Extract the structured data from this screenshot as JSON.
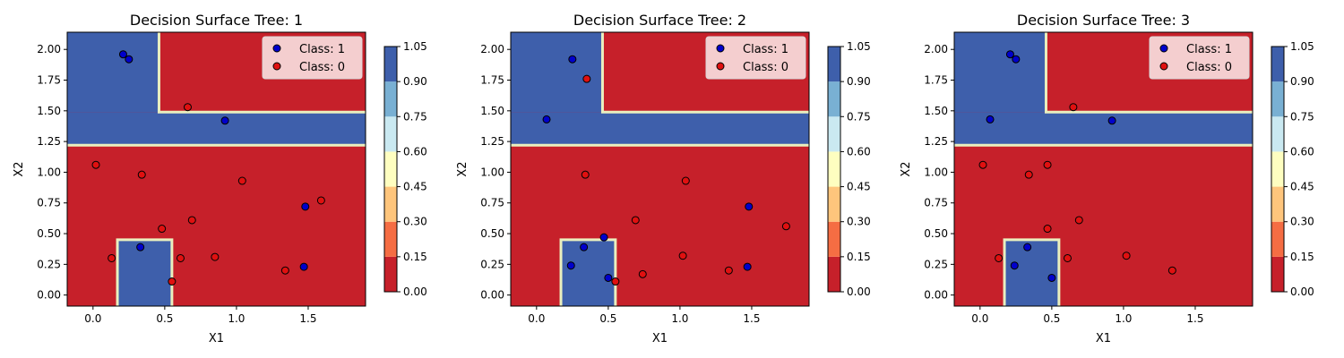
{
  "figure": {
    "colorbar_levels": [
      0.0,
      0.15,
      0.3,
      0.45,
      0.6,
      0.75,
      0.9,
      1.05
    ],
    "colorbar_labels": [
      "0.00",
      "0.15",
      "0.30",
      "0.45",
      "0.60",
      "0.75",
      "0.90",
      "1.05"
    ],
    "colorbar_colors": [
      "#c6202a",
      "#f56d43",
      "#fec57c",
      "#fefec0",
      "#cae9f1",
      "#79b0d3",
      "#3e5fab"
    ],
    "class_colors": {
      "1": "#0000cc",
      "0": "#e01010"
    },
    "boundary_color": "#e9efbf"
  },
  "chart_data": [
    {
      "type": "scatter",
      "title": "Decision Surface Tree: 1",
      "xlabel": "X1",
      "ylabel": "X2",
      "xlim": [
        -0.18,
        1.9
      ],
      "ylim": [
        -0.09,
        2.14
      ],
      "xticks": [
        0.0,
        0.5,
        1.0,
        1.5
      ],
      "xtick_labels": [
        "0.0",
        "0.5",
        "1.0",
        "1.5"
      ],
      "yticks": [
        0.0,
        0.25,
        0.5,
        0.75,
        1.0,
        1.25,
        1.5,
        1.75,
        2.0
      ],
      "ytick_labels": [
        "0.00",
        "0.25",
        "0.50",
        "0.75",
        "1.00",
        "1.25",
        "1.50",
        "1.75",
        "2.00"
      ],
      "legend": [
        "Class: 1",
        "Class: 0"
      ],
      "legend_position": "upper right",
      "surface_class1_regions": [
        {
          "x": [
            -0.18,
            1.9
          ],
          "y": [
            1.22,
            1.49
          ]
        },
        {
          "x": [
            -0.18,
            0.46
          ],
          "y": [
            1.49,
            2.14
          ]
        },
        {
          "x": [
            0.17,
            0.55
          ],
          "y": [
            -0.09,
            0.45
          ]
        }
      ],
      "series": [
        {
          "name": "Class: 1",
          "points": [
            [
              0.21,
              1.96
            ],
            [
              0.25,
              1.92
            ],
            [
              0.92,
              1.42
            ],
            [
              0.33,
              0.39
            ],
            [
              1.48,
              0.72
            ],
            [
              1.47,
              0.23
            ]
          ]
        },
        {
          "name": "Class: 0",
          "points": [
            [
              0.66,
              1.53
            ],
            [
              0.02,
              1.06
            ],
            [
              0.34,
              0.98
            ],
            [
              1.04,
              0.93
            ],
            [
              1.59,
              0.77
            ],
            [
              0.48,
              0.54
            ],
            [
              0.69,
              0.61
            ],
            [
              0.13,
              0.3
            ],
            [
              0.61,
              0.3
            ],
            [
              0.85,
              0.31
            ],
            [
              1.34,
              0.2
            ],
            [
              0.55,
              0.11
            ]
          ]
        }
      ]
    },
    {
      "type": "scatter",
      "title": "Decision Surface Tree: 2",
      "xlabel": "X1",
      "ylabel": "X2",
      "xlim": [
        -0.18,
        1.9
      ],
      "ylim": [
        -0.09,
        2.14
      ],
      "xticks": [
        0.0,
        0.5,
        1.0,
        1.5
      ],
      "xtick_labels": [
        "0.0",
        "0.5",
        "1.0",
        "1.5"
      ],
      "yticks": [
        0.0,
        0.25,
        0.5,
        0.75,
        1.0,
        1.25,
        1.5,
        1.75,
        2.0
      ],
      "ytick_labels": [
        "0.00",
        "0.25",
        "0.50",
        "0.75",
        "1.00",
        "1.25",
        "1.50",
        "1.75",
        "2.00"
      ],
      "legend": [
        "Class: 1",
        "Class: 0"
      ],
      "legend_position": "upper right",
      "surface_class1_regions": [
        {
          "x": [
            -0.18,
            1.9
          ],
          "y": [
            1.22,
            1.49
          ]
        },
        {
          "x": [
            -0.18,
            0.46
          ],
          "y": [
            1.49,
            2.14
          ]
        },
        {
          "x": [
            0.17,
            0.55
          ],
          "y": [
            -0.09,
            0.45
          ]
        }
      ],
      "series": [
        {
          "name": "Class: 1",
          "points": [
            [
              0.25,
              1.92
            ],
            [
              0.07,
              1.43
            ],
            [
              0.33,
              0.39
            ],
            [
              0.47,
              0.47
            ],
            [
              0.24,
              0.24
            ],
            [
              0.5,
              0.14
            ],
            [
              1.48,
              0.72
            ],
            [
              1.47,
              0.23
            ]
          ]
        },
        {
          "name": "Class: 0",
          "points": [
            [
              0.35,
              1.76
            ],
            [
              0.34,
              0.98
            ],
            [
              1.04,
              0.93
            ],
            [
              0.69,
              0.61
            ],
            [
              1.74,
              0.56
            ],
            [
              1.02,
              0.32
            ],
            [
              0.74,
              0.17
            ],
            [
              1.34,
              0.2
            ],
            [
              0.55,
              0.11
            ]
          ]
        }
      ]
    },
    {
      "type": "scatter",
      "title": "Decision Surface Tree: 3",
      "xlabel": "X1",
      "ylabel": "X2",
      "xlim": [
        -0.18,
        1.9
      ],
      "ylim": [
        -0.09,
        2.14
      ],
      "xticks": [
        0.0,
        0.5,
        1.0,
        1.5
      ],
      "xtick_labels": [
        "0.0",
        "0.5",
        "1.0",
        "1.5"
      ],
      "yticks": [
        0.0,
        0.25,
        0.5,
        0.75,
        1.0,
        1.25,
        1.5,
        1.75,
        2.0
      ],
      "ytick_labels": [
        "0.00",
        "0.25",
        "0.50",
        "0.75",
        "1.00",
        "1.25",
        "1.50",
        "1.75",
        "2.00"
      ],
      "legend": [
        "Class: 1",
        "Class: 0"
      ],
      "legend_position": "upper right",
      "surface_class1_regions": [
        {
          "x": [
            -0.18,
            1.9
          ],
          "y": [
            1.22,
            1.49
          ]
        },
        {
          "x": [
            -0.18,
            0.46
          ],
          "y": [
            1.49,
            2.14
          ]
        },
        {
          "x": [
            0.17,
            0.55
          ],
          "y": [
            -0.09,
            0.45
          ]
        }
      ],
      "series": [
        {
          "name": "Class: 1",
          "points": [
            [
              0.21,
              1.96
            ],
            [
              0.25,
              1.92
            ],
            [
              0.07,
              1.43
            ],
            [
              0.92,
              1.42
            ],
            [
              0.33,
              0.39
            ],
            [
              0.24,
              0.24
            ],
            [
              0.5,
              0.14
            ]
          ]
        },
        {
          "name": "Class: 0",
          "points": [
            [
              0.65,
              1.53
            ],
            [
              0.02,
              1.06
            ],
            [
              0.47,
              1.06
            ],
            [
              0.34,
              0.98
            ],
            [
              0.47,
              0.54
            ],
            [
              0.69,
              0.61
            ],
            [
              0.13,
              0.3
            ],
            [
              0.61,
              0.3
            ],
            [
              1.02,
              0.32
            ],
            [
              1.34,
              0.2
            ]
          ]
        }
      ]
    }
  ]
}
